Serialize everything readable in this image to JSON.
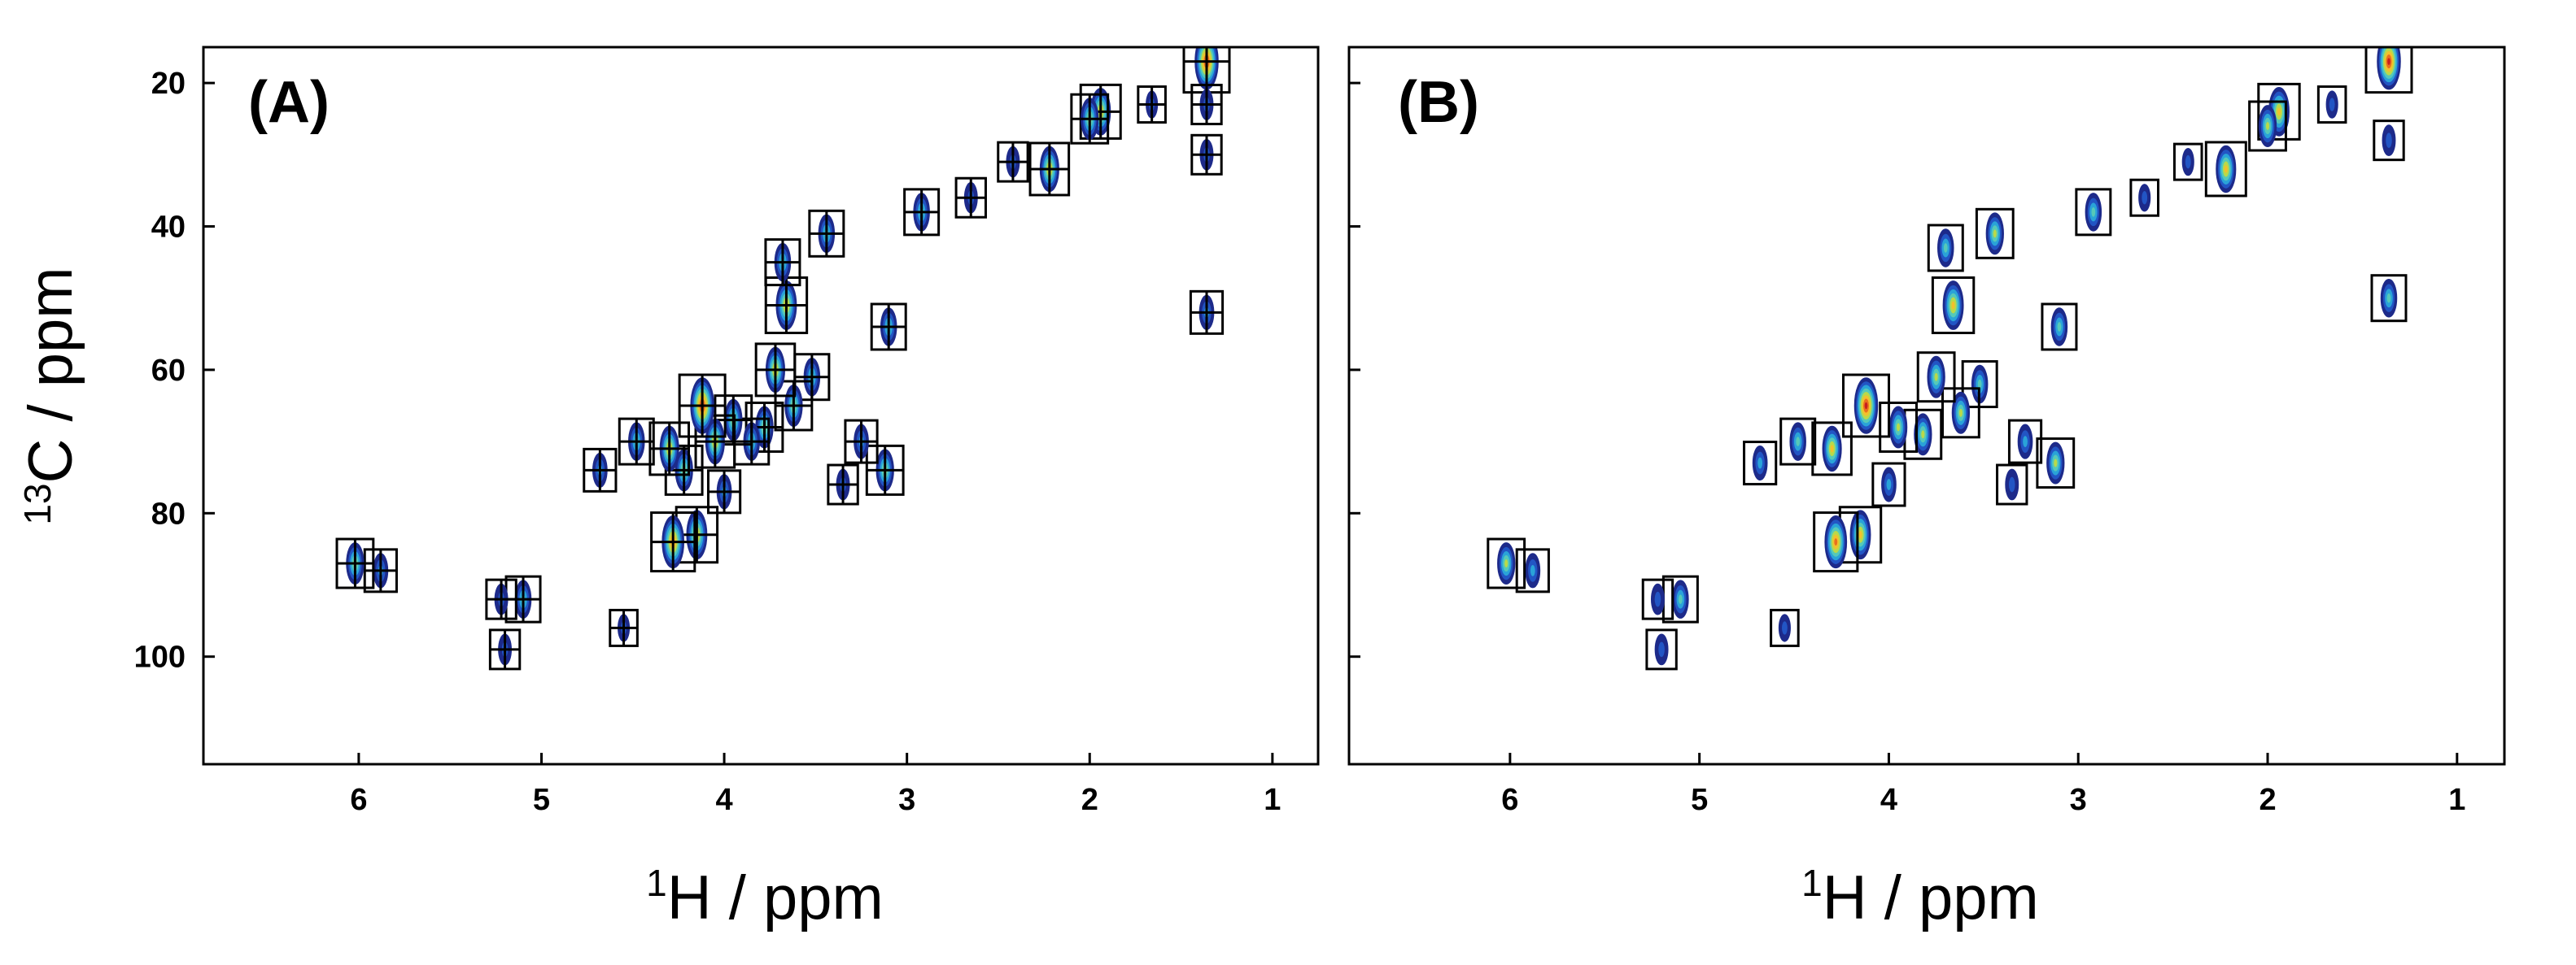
{
  "chart_data": [
    {
      "type": "scatter",
      "subtype": "2D NMR HSQC contour plot with peak boxes",
      "panel_label": "(A)",
      "xlabel_sup": "1",
      "xlabel_main": "H / ppm",
      "ylabel_sup": "13",
      "ylabel_main": "C / ppm",
      "xlim": [
        6.85,
        0.75
      ],
      "ylim": [
        115,
        15
      ],
      "xticks": [
        6,
        5,
        4,
        3,
        2,
        1
      ],
      "yticks": [
        20,
        40,
        60,
        80,
        100
      ],
      "box_style": "grid",
      "peaks": [
        {
          "x": 1.36,
          "y": 17,
          "i": 1.0
        },
        {
          "x": 1.36,
          "y": 23,
          "i": 0.3
        },
        {
          "x": 1.36,
          "y": 30,
          "i": 0.3
        },
        {
          "x": 1.36,
          "y": 52,
          "i": 0.4
        },
        {
          "x": 1.66,
          "y": 23,
          "i": 0.2
        },
        {
          "x": 1.94,
          "y": 24,
          "i": 0.75
        },
        {
          "x": 2.0,
          "y": 25,
          "i": 0.6
        },
        {
          "x": 2.22,
          "y": 32,
          "i": 0.7
        },
        {
          "x": 2.42,
          "y": 31,
          "i": 0.3
        },
        {
          "x": 2.65,
          "y": 36,
          "i": 0.3
        },
        {
          "x": 2.92,
          "y": 38,
          "i": 0.5
        },
        {
          "x": 3.1,
          "y": 54,
          "i": 0.5
        },
        {
          "x": 3.12,
          "y": 74,
          "i": 0.6
        },
        {
          "x": 3.25,
          "y": 70,
          "i": 0.4
        },
        {
          "x": 3.35,
          "y": 76,
          "i": 0.3
        },
        {
          "x": 3.44,
          "y": 41,
          "i": 0.5
        },
        {
          "x": 3.52,
          "y": 61,
          "i": 0.5
        },
        {
          "x": 3.62,
          "y": 65,
          "i": 0.6
        },
        {
          "x": 3.66,
          "y": 51,
          "i": 0.8
        },
        {
          "x": 3.68,
          "y": 45,
          "i": 0.5
        },
        {
          "x": 3.72,
          "y": 60,
          "i": 0.7
        },
        {
          "x": 3.78,
          "y": 68,
          "i": 0.6
        },
        {
          "x": 3.85,
          "y": 70,
          "i": 0.5
        },
        {
          "x": 3.95,
          "y": 67,
          "i": 0.6
        },
        {
          "x": 4.0,
          "y": 77,
          "i": 0.4
        },
        {
          "x": 4.05,
          "y": 70,
          "i": 0.7
        },
        {
          "x": 4.12,
          "y": 65,
          "i": 1.0
        },
        {
          "x": 4.15,
          "y": 83,
          "i": 0.8
        },
        {
          "x": 4.22,
          "y": 74,
          "i": 0.6
        },
        {
          "x": 4.28,
          "y": 84,
          "i": 0.9
        },
        {
          "x": 4.3,
          "y": 71,
          "i": 0.7
        },
        {
          "x": 4.48,
          "y": 70,
          "i": 0.5
        },
        {
          "x": 4.55,
          "y": 96,
          "i": 0.2
        },
        {
          "x": 4.68,
          "y": 74,
          "i": 0.4
        },
        {
          "x": 5.1,
          "y": 92,
          "i": 0.5
        },
        {
          "x": 5.2,
          "y": 99,
          "i": 0.3
        },
        {
          "x": 5.22,
          "y": 92,
          "i": 0.3
        },
        {
          "x": 5.88,
          "y": 88,
          "i": 0.4
        },
        {
          "x": 6.02,
          "y": 87,
          "i": 0.6
        }
      ]
    },
    {
      "type": "scatter",
      "subtype": "2D NMR HSQC contour plot with peak boxes",
      "panel_label": "(B)",
      "xlabel_sup": "1",
      "xlabel_main": "H / ppm",
      "ylabel_sup": "",
      "ylabel_main": "",
      "xlim": [
        6.85,
        0.75
      ],
      "ylim": [
        115,
        15
      ],
      "xticks": [
        6,
        5,
        4,
        3,
        2,
        1
      ],
      "yticks": [
        20,
        40,
        60,
        80,
        100
      ],
      "box_style": "single",
      "peaks": [
        {
          "x": 1.36,
          "y": 17,
          "i": 1.0
        },
        {
          "x": 1.36,
          "y": 28,
          "i": 0.3
        },
        {
          "x": 1.36,
          "y": 50,
          "i": 0.5
        },
        {
          "x": 1.66,
          "y": 23,
          "i": 0.2
        },
        {
          "x": 1.94,
          "y": 24,
          "i": 0.8
        },
        {
          "x": 2.0,
          "y": 26,
          "i": 0.6
        },
        {
          "x": 2.22,
          "y": 32,
          "i": 0.75
        },
        {
          "x": 2.42,
          "y": 31,
          "i": 0.2
        },
        {
          "x": 2.65,
          "y": 36,
          "i": 0.2
        },
        {
          "x": 2.92,
          "y": 38,
          "i": 0.5
        },
        {
          "x": 3.1,
          "y": 54,
          "i": 0.5
        },
        {
          "x": 3.12,
          "y": 73,
          "i": 0.6
        },
        {
          "x": 3.28,
          "y": 70,
          "i": 0.4
        },
        {
          "x": 3.35,
          "y": 76,
          "i": 0.3
        },
        {
          "x": 3.44,
          "y": 41,
          "i": 0.6
        },
        {
          "x": 3.52,
          "y": 62,
          "i": 0.5
        },
        {
          "x": 3.62,
          "y": 66,
          "i": 0.6
        },
        {
          "x": 3.66,
          "y": 51,
          "i": 0.8
        },
        {
          "x": 3.7,
          "y": 43,
          "i": 0.5
        },
        {
          "x": 3.75,
          "y": 61,
          "i": 0.6
        },
        {
          "x": 3.82,
          "y": 69,
          "i": 0.6
        },
        {
          "x": 3.95,
          "y": 68,
          "i": 0.6
        },
        {
          "x": 4.0,
          "y": 76,
          "i": 0.4
        },
        {
          "x": 4.12,
          "y": 65,
          "i": 1.0
        },
        {
          "x": 4.15,
          "y": 83,
          "i": 0.8
        },
        {
          "x": 4.28,
          "y": 84,
          "i": 0.9
        },
        {
          "x": 4.3,
          "y": 71,
          "i": 0.7
        },
        {
          "x": 4.48,
          "y": 70,
          "i": 0.5
        },
        {
          "x": 4.55,
          "y": 96,
          "i": 0.2
        },
        {
          "x": 4.68,
          "y": 73,
          "i": 0.4
        },
        {
          "x": 5.1,
          "y": 92,
          "i": 0.5
        },
        {
          "x": 5.2,
          "y": 99,
          "i": 0.3
        },
        {
          "x": 5.22,
          "y": 92,
          "i": 0.3
        },
        {
          "x": 5.88,
          "y": 88,
          "i": 0.4
        },
        {
          "x": 6.02,
          "y": 87,
          "i": 0.6
        }
      ]
    }
  ]
}
